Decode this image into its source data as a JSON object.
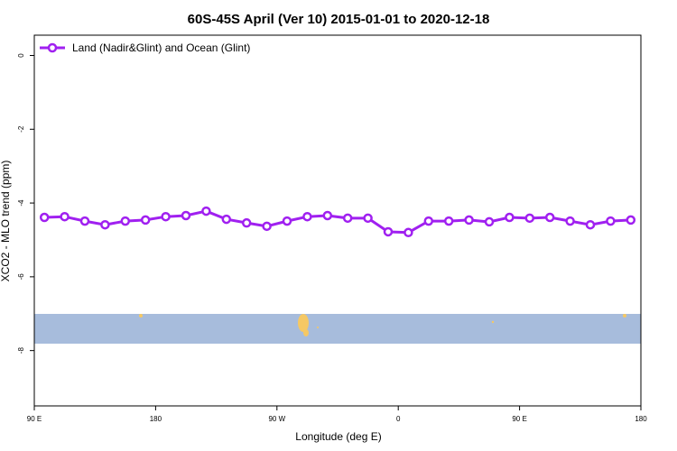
{
  "chart_data": {
    "type": "line",
    "title": "60S-45S April (Ver 10)   2015-01-01 to 2020-12-18",
    "x_label": "Longitude (deg E)",
    "y_label": "XCO2 - MLO trend (ppm)",
    "x": [
      97.5,
      112.5,
      127.5,
      142.5,
      157.5,
      172.5,
      187.5,
      202.5,
      217.5,
      232.5,
      247.5,
      262.5,
      277.5,
      292.5,
      307.5,
      322.5,
      337.5,
      352.5,
      367.5,
      382.5,
      397.5,
      412.5,
      427.5,
      442.5,
      457.5,
      472.5,
      487.5,
      502.5,
      517.5,
      532.5
    ],
    "series": [
      {
        "name": "Land (Nadir&Glint) and Ocean (Glint)",
        "color": "#a020f0",
        "values": [
          -4.39,
          -4.37,
          -4.49,
          -4.59,
          -4.49,
          -4.46,
          -4.37,
          -4.34,
          -4.22,
          -4.44,
          -4.54,
          -4.63,
          -4.49,
          -4.37,
          -4.34,
          -4.41,
          -4.41,
          -4.78,
          -4.8,
          -4.49,
          -4.49,
          -4.46,
          -4.51,
          -4.39,
          -4.41,
          -4.39,
          -4.49,
          -4.59,
          -4.49,
          -4.46
        ]
      }
    ],
    "xlim": [
      90,
      540
    ],
    "xticks": [
      {
        "value": 90,
        "label": "90 E"
      },
      180,
      {
        "value": 270,
        "label": "90 W"
      },
      {
        "value": 360,
        "label": "0"
      },
      {
        "value": 450,
        "label": "90 E"
      },
      {
        "value": 540,
        "label": "180"
      }
    ],
    "ylim": [
      -9.5,
      0.55
    ],
    "yticks": [
      0,
      -2,
      -4,
      -6,
      -8
    ],
    "legend": "top-left"
  }
}
